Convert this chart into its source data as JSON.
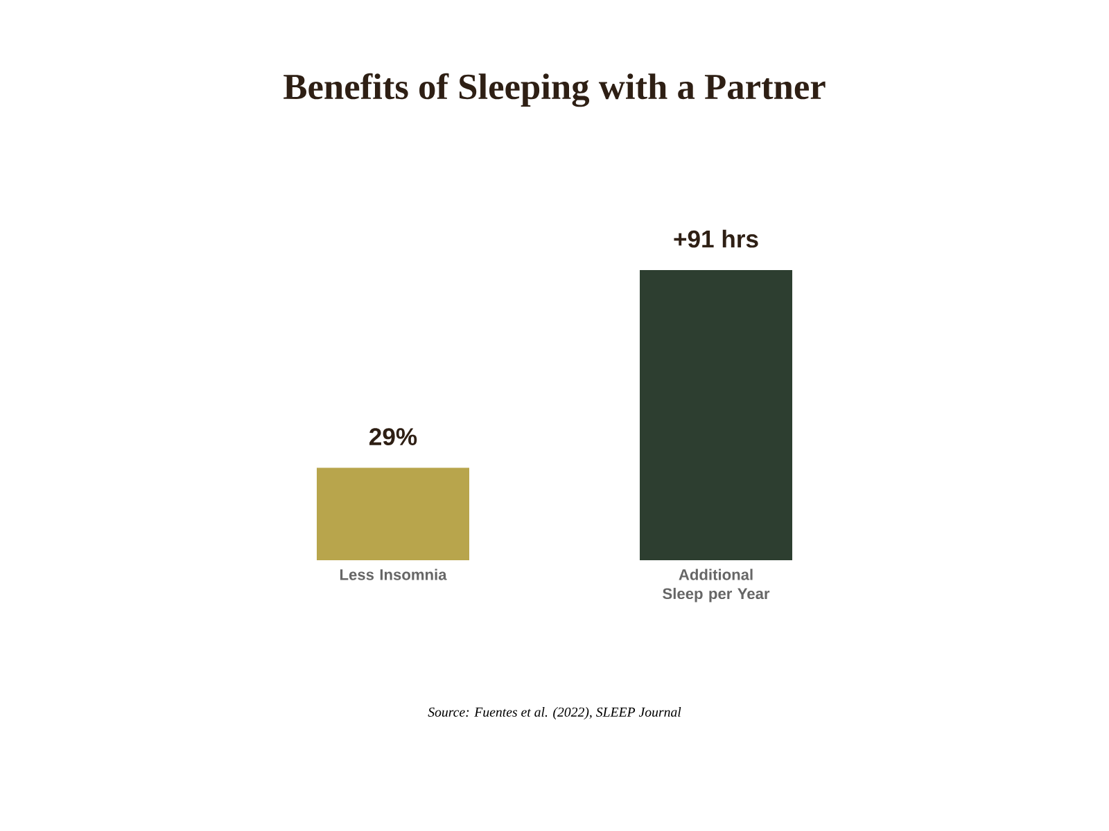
{
  "chart_data": {
    "type": "bar",
    "title": "Benefits of Sleeping with a Partner",
    "categories": [
      "Less Insomnia",
      "Additional Sleep per Year"
    ],
    "values": [
      29,
      91
    ],
    "colors": [
      "#b8a54c",
      "#2d3e30"
    ],
    "value_labels": [
      "29%",
      "+91 hrs"
    ],
    "annotations": [
      "Source: Fuentes et al. (2022), SLEEP Journal"
    ]
  }
}
